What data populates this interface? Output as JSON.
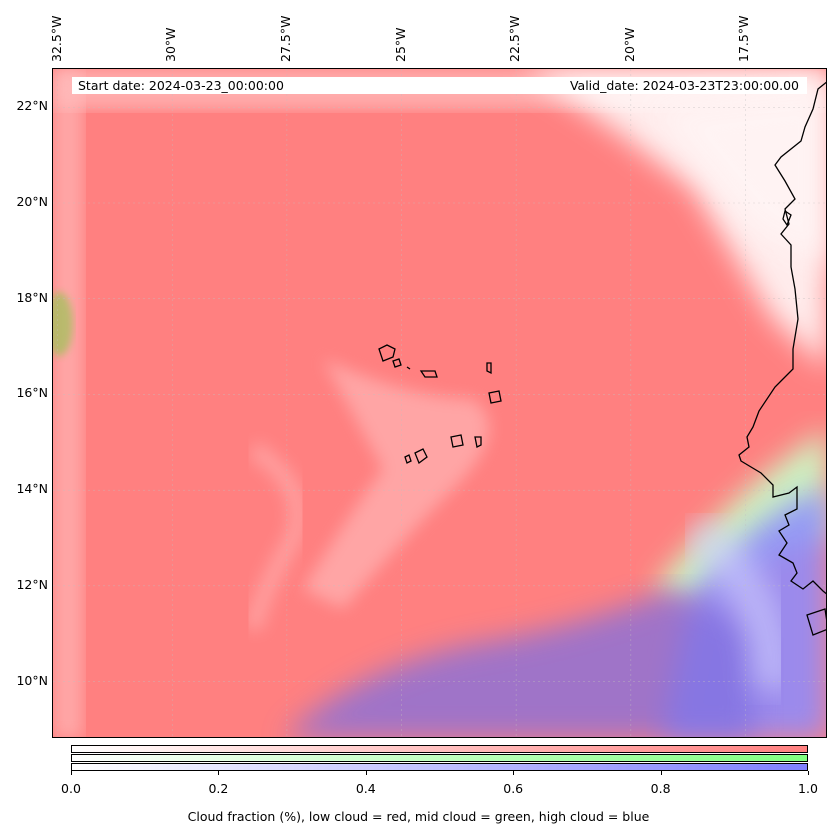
{
  "map": {
    "projection": "PlateCarree",
    "extent": {
      "lon_min": -32.6,
      "lon_max": -15.7,
      "lat_min": 8.8,
      "lat_max": 22.8
    },
    "lon_ticks": [
      {
        "value": -32.5,
        "label": "32.5°W"
      },
      {
        "value": -30,
        "label": "30°W"
      },
      {
        "value": -27.5,
        "label": "27.5°W"
      },
      {
        "value": -25,
        "label": "25°W"
      },
      {
        "value": -22.5,
        "label": "22.5°W"
      },
      {
        "value": -20,
        "label": "20°W"
      },
      {
        "value": -17.5,
        "label": "17.5°W"
      }
    ],
    "lat_ticks": [
      {
        "value": 22,
        "label": "22°N"
      },
      {
        "value": 20,
        "label": "20°N"
      },
      {
        "value": 18,
        "label": "18°N"
      },
      {
        "value": 16,
        "label": "16°N"
      },
      {
        "value": 14,
        "label": "14°N"
      },
      {
        "value": 12,
        "label": "12°N"
      },
      {
        "value": 10,
        "label": "10°N"
      }
    ],
    "start_date_text": "Start date: 2024-03-23_00:00:00",
    "valid_date_text": "Valid_date: 2024-03-23T23:00:00.00",
    "colors": {
      "low": "#ff8080",
      "mid": "#80ff80",
      "high": "#8080ff",
      "coast": "#000000"
    }
  },
  "colorbar": {
    "ticks": [
      "0.0",
      "0.2",
      "0.4",
      "0.6",
      "0.8",
      "1.0"
    ],
    "title": "Cloud fraction (%), low cloud = red, mid cloud = green, high cloud = blue"
  }
}
